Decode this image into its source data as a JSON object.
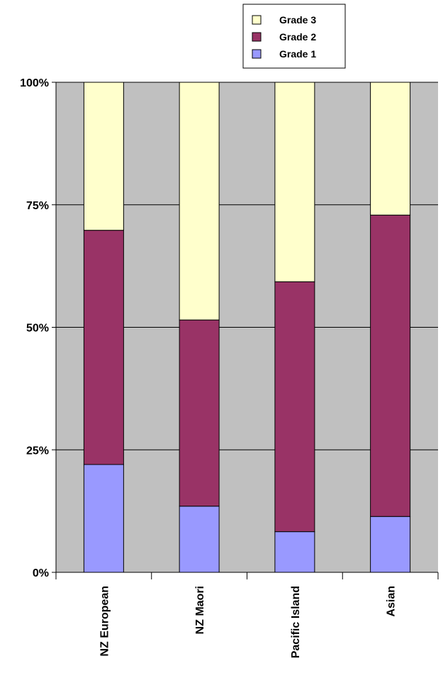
{
  "chart_data": {
    "type": "bar",
    "stacked": true,
    "percent_stacked": true,
    "categories": [
      "NZ European",
      "NZ Maori",
      "Pacific Island",
      "Asian"
    ],
    "series": [
      {
        "name": "Grade 1",
        "color": "#9999ff",
        "values": [
          22,
          13.5,
          8.3,
          11.4
        ]
      },
      {
        "name": "Grade 2",
        "color": "#993366",
        "values": [
          47.8,
          38,
          51,
          61.5
        ]
      },
      {
        "name": "Grade 3",
        "color": "#ffffcc",
        "values": [
          30.2,
          48.5,
          40.7,
          27.1
        ]
      }
    ],
    "ylim": [
      0,
      100
    ],
    "yticks": [
      {
        "value": 0,
        "label": "0%"
      },
      {
        "value": 25,
        "label": "25%"
      },
      {
        "value": 50,
        "label": "50%"
      },
      {
        "value": 75,
        "label": "75%"
      },
      {
        "value": 100,
        "label": "100%"
      }
    ],
    "grid": true,
    "plot_background": "#c0c0c0",
    "legend": {
      "placement": "top-center",
      "order": [
        "Grade 3",
        "Grade 2",
        "Grade 1"
      ]
    }
  }
}
